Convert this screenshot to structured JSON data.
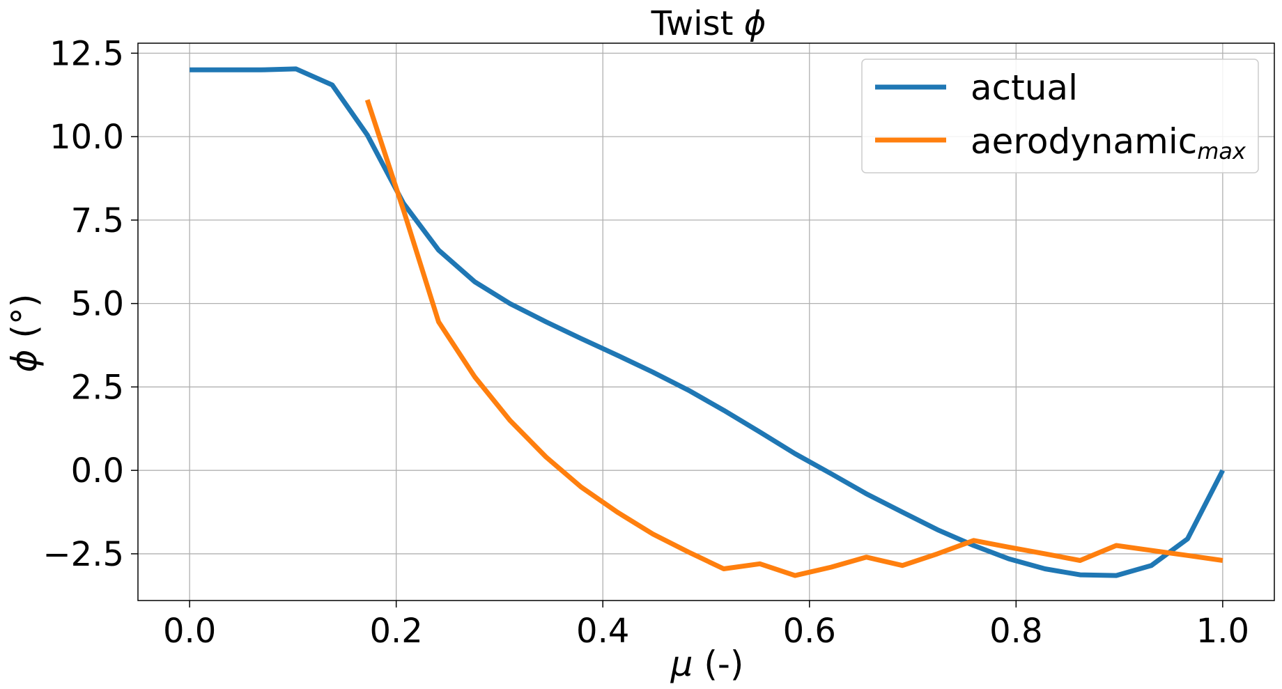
{
  "chart_data": {
    "type": "line",
    "title_prefix": "Twist ",
    "title_symbol": "ϕ",
    "xlabel_symbol": "μ",
    "xlabel_rest": " (-)",
    "ylabel_symbol": "ϕ",
    "ylabel_rest": " (°)",
    "xlim": [
      -0.05,
      1.05
    ],
    "ylim": [
      -3.9,
      12.8
    ],
    "grid": true,
    "legend_position": "top-right",
    "x_ticks": [
      {
        "value": 0.0,
        "label": "0.0"
      },
      {
        "value": 0.2,
        "label": "0.2"
      },
      {
        "value": 0.4,
        "label": "0.4"
      },
      {
        "value": 0.6,
        "label": "0.6"
      },
      {
        "value": 0.8,
        "label": "0.8"
      },
      {
        "value": 1.0,
        "label": "1.0"
      }
    ],
    "y_ticks": [
      {
        "value": -2.5,
        "label": "−2.5"
      },
      {
        "value": 0.0,
        "label": "0.0"
      },
      {
        "value": 2.5,
        "label": "2.5"
      },
      {
        "value": 5.0,
        "label": "5.0"
      },
      {
        "value": 7.5,
        "label": "7.5"
      },
      {
        "value": 10.0,
        "label": "10.0"
      },
      {
        "value": 12.5,
        "label": "12.5"
      }
    ],
    "series": [
      {
        "name": "actual",
        "name_sub": "",
        "color": "#1f77b4",
        "x": [
          0.0,
          0.034,
          0.069,
          0.103,
          0.138,
          0.172,
          0.207,
          0.241,
          0.276,
          0.31,
          0.345,
          0.379,
          0.414,
          0.448,
          0.483,
          0.517,
          0.552,
          0.586,
          0.621,
          0.655,
          0.69,
          0.724,
          0.759,
          0.793,
          0.828,
          0.862,
          0.897,
          0.931,
          0.966,
          1.0
        ],
        "y": [
          12.0,
          12.0,
          12.0,
          12.03,
          11.55,
          10.05,
          8.0,
          6.6,
          5.65,
          5.0,
          4.45,
          3.95,
          3.45,
          2.95,
          2.4,
          1.8,
          1.15,
          0.5,
          -0.1,
          -0.7,
          -1.25,
          -1.78,
          -2.25,
          -2.65,
          -2.95,
          -3.13,
          -3.15,
          -2.85,
          -2.05,
          0.0
        ]
      },
      {
        "name": "aerodynamic",
        "name_sub": "max",
        "color": "#ff7f0e",
        "x": [
          0.172,
          0.207,
          0.241,
          0.276,
          0.31,
          0.345,
          0.379,
          0.414,
          0.448,
          0.483,
          0.517,
          0.552,
          0.586,
          0.621,
          0.655,
          0.69,
          0.724,
          0.759,
          0.793,
          0.828,
          0.862,
          0.897,
          0.931,
          0.966,
          1.0
        ],
        "y": [
          11.1,
          7.8,
          4.45,
          2.8,
          1.5,
          0.4,
          -0.5,
          -1.25,
          -1.9,
          -2.45,
          -2.95,
          -2.8,
          -3.15,
          -2.9,
          -2.6,
          -2.85,
          -2.5,
          -2.1,
          -2.3,
          -2.5,
          -2.7,
          -2.25,
          -2.4,
          -2.55,
          -2.7
        ]
      }
    ]
  }
}
